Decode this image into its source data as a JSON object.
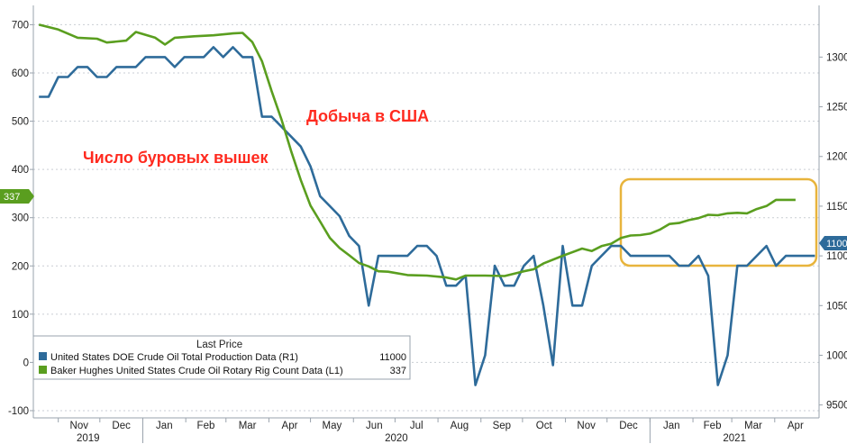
{
  "chart_data": {
    "type": "line",
    "x_axis": {
      "months": [
        "Nov",
        "Dec",
        "Jan",
        "Feb",
        "Mar",
        "Apr",
        "May",
        "Jun",
        "Jul",
        "Aug",
        "Sep",
        "Oct",
        "Nov",
        "Dec",
        "Jan",
        "Feb",
        "Mar",
        "Apr"
      ],
      "years": [
        "2019",
        "2020",
        "2021"
      ],
      "range": [
        "2019-10-18",
        "2021-04-30"
      ]
    },
    "left_axis": {
      "ticks": [
        700,
        600,
        500,
        400,
        300,
        200,
        100,
        0,
        -100
      ],
      "ylim": [
        -115,
        740
      ]
    },
    "right_axis": {
      "ticks": [
        13000,
        12500,
        12000,
        11500,
        11000,
        10500,
        10000,
        9500
      ],
      "ylim": [
        9370,
        13520
      ]
    },
    "annotations": {
      "production": "Добыча в США",
      "rigs": "Число буровых вышек"
    },
    "last_price_tags": {
      "rig_count": "337",
      "production": "11000"
    },
    "legend": {
      "title": "Last Price",
      "entries": [
        {
          "label": "United States DOE Crude Oil Total Production Data  (R1)",
          "value": "11000",
          "color": "#2e6b9a"
        },
        {
          "label": "Baker Hughes United States Crude Oil Rotary Rig Count Data  (L1)",
          "value": "337",
          "color": "#5a9e1f"
        }
      ]
    },
    "series": [
      {
        "name": "United States DOE Crude Oil Total Production Data  (R1)",
        "axis": "right",
        "color": "#2e6b9a",
        "points": [
          [
            "2019-10-18",
            12600
          ],
          [
            "2019-10-25",
            12600
          ],
          [
            "2019-11-01",
            12800
          ],
          [
            "2019-11-08",
            12800
          ],
          [
            "2019-11-15",
            12900
          ],
          [
            "2019-11-22",
            12900
          ],
          [
            "2019-11-29",
            12800
          ],
          [
            "2019-12-06",
            12800
          ],
          [
            "2019-12-13",
            12900
          ],
          [
            "2019-12-20",
            12900
          ],
          [
            "2019-12-27",
            12900
          ],
          [
            "2020-01-03",
            13000
          ],
          [
            "2020-01-10",
            13000
          ],
          [
            "2020-01-17",
            13000
          ],
          [
            "2020-01-24",
            12900
          ],
          [
            "2020-01-31",
            13000
          ],
          [
            "2020-02-07",
            13000
          ],
          [
            "2020-02-14",
            13000
          ],
          [
            "2020-02-21",
            13100
          ],
          [
            "2020-02-28",
            13000
          ],
          [
            "2020-03-06",
            13100
          ],
          [
            "2020-03-13",
            13000
          ],
          [
            "2020-03-20",
            13000
          ],
          [
            "2020-03-27",
            12400
          ],
          [
            "2020-04-03",
            12400
          ],
          [
            "2020-04-10",
            12300
          ],
          [
            "2020-04-17",
            12200
          ],
          [
            "2020-04-24",
            12100
          ],
          [
            "2020-05-01",
            11900
          ],
          [
            "2020-05-08",
            11600
          ],
          [
            "2020-05-15",
            11500
          ],
          [
            "2020-05-22",
            11400
          ],
          [
            "2020-05-29",
            11200
          ],
          [
            "2020-06-05",
            11100
          ],
          [
            "2020-06-12",
            10500
          ],
          [
            "2020-06-19",
            11000
          ],
          [
            "2020-06-26",
            11000
          ],
          [
            "2020-07-03",
            11000
          ],
          [
            "2020-07-10",
            11000
          ],
          [
            "2020-07-17",
            11100
          ],
          [
            "2020-07-24",
            11100
          ],
          [
            "2020-07-31",
            11000
          ],
          [
            "2020-08-07",
            10700
          ],
          [
            "2020-08-14",
            10700
          ],
          [
            "2020-08-21",
            10800
          ],
          [
            "2020-08-28",
            9700
          ],
          [
            "2020-09-04",
            10000
          ],
          [
            "2020-09-11",
            10900
          ],
          [
            "2020-09-18",
            10700
          ],
          [
            "2020-09-25",
            10700
          ],
          [
            "2020-10-02",
            10900
          ],
          [
            "2020-10-09",
            11000
          ],
          [
            "2020-10-16",
            10500
          ],
          [
            "2020-10-23",
            9900
          ],
          [
            "2020-10-30",
            11100
          ],
          [
            "2020-11-06",
            10500
          ],
          [
            "2020-11-13",
            10500
          ],
          [
            "2020-11-20",
            10900
          ],
          [
            "2020-11-27",
            11000
          ],
          [
            "2020-12-04",
            11100
          ],
          [
            "2020-12-11",
            11100
          ],
          [
            "2020-12-18",
            11000
          ],
          [
            "2020-12-25",
            11000
          ],
          [
            "2021-01-01",
            11000
          ],
          [
            "2021-01-08",
            11000
          ],
          [
            "2021-01-15",
            11000
          ],
          [
            "2021-01-22",
            10900
          ],
          [
            "2021-01-29",
            10900
          ],
          [
            "2021-02-05",
            11000
          ],
          [
            "2021-02-12",
            10800
          ],
          [
            "2021-02-19",
            9700
          ],
          [
            "2021-02-26",
            10000
          ],
          [
            "2021-03-05",
            10900
          ],
          [
            "2021-03-12",
            10900
          ],
          [
            "2021-03-19",
            11000
          ],
          [
            "2021-03-26",
            11100
          ],
          [
            "2021-04-02",
            10900
          ],
          [
            "2021-04-09",
            11000
          ],
          [
            "2021-04-16",
            11000
          ],
          [
            "2021-04-23",
            11000
          ],
          [
            "2021-04-30",
            11000
          ]
        ]
      },
      {
        "name": "Baker Hughes United States Crude Oil Rotary Rig Count Data  (L1)",
        "axis": "left",
        "color": "#5a9e1f",
        "points": [
          [
            "2019-10-18",
            700
          ],
          [
            "2019-11-01",
            690
          ],
          [
            "2019-11-15",
            673
          ],
          [
            "2019-11-29",
            671
          ],
          [
            "2019-12-06",
            663
          ],
          [
            "2019-12-20",
            667
          ],
          [
            "2019-12-27",
            685
          ],
          [
            "2020-01-10",
            673
          ],
          [
            "2020-01-17",
            659
          ],
          [
            "2020-01-24",
            673
          ],
          [
            "2020-02-07",
            676
          ],
          [
            "2020-02-21",
            678
          ],
          [
            "2020-03-06",
            682
          ],
          [
            "2020-03-13",
            683
          ],
          [
            "2020-03-20",
            664
          ],
          [
            "2020-03-27",
            624
          ],
          [
            "2020-04-03",
            562
          ],
          [
            "2020-04-10",
            504
          ],
          [
            "2020-04-17",
            438
          ],
          [
            "2020-04-24",
            378
          ],
          [
            "2020-05-01",
            325
          ],
          [
            "2020-05-08",
            292
          ],
          [
            "2020-05-15",
            258
          ],
          [
            "2020-05-22",
            237
          ],
          [
            "2020-05-29",
            222
          ],
          [
            "2020-06-05",
            206
          ],
          [
            "2020-06-12",
            199
          ],
          [
            "2020-06-19",
            189
          ],
          [
            "2020-06-26",
            188
          ],
          [
            "2020-07-10",
            181
          ],
          [
            "2020-07-24",
            180
          ],
          [
            "2020-08-07",
            176
          ],
          [
            "2020-08-14",
            172
          ],
          [
            "2020-08-21",
            180
          ],
          [
            "2020-09-04",
            180
          ],
          [
            "2020-09-18",
            179
          ],
          [
            "2020-10-02",
            189
          ],
          [
            "2020-10-09",
            193
          ],
          [
            "2020-10-16",
            205
          ],
          [
            "2020-10-30",
            221
          ],
          [
            "2020-11-13",
            236
          ],
          [
            "2020-11-20",
            231
          ],
          [
            "2020-11-27",
            241
          ],
          [
            "2020-12-04",
            246
          ],
          [
            "2020-12-11",
            258
          ],
          [
            "2020-12-18",
            263
          ],
          [
            "2020-12-25",
            264
          ],
          [
            "2021-01-01",
            267
          ],
          [
            "2021-01-08",
            275
          ],
          [
            "2021-01-15",
            287
          ],
          [
            "2021-01-22",
            289
          ],
          [
            "2021-01-29",
            295
          ],
          [
            "2021-02-05",
            299
          ],
          [
            "2021-02-12",
            306
          ],
          [
            "2021-02-19",
            305
          ],
          [
            "2021-02-26",
            309
          ],
          [
            "2021-03-05",
            310
          ],
          [
            "2021-03-12",
            309
          ],
          [
            "2021-03-19",
            318
          ],
          [
            "2021-03-26",
            324
          ],
          [
            "2021-04-02",
            337
          ],
          [
            "2021-04-09",
            337
          ],
          [
            "2021-04-16",
            337
          ]
        ]
      }
    ]
  }
}
